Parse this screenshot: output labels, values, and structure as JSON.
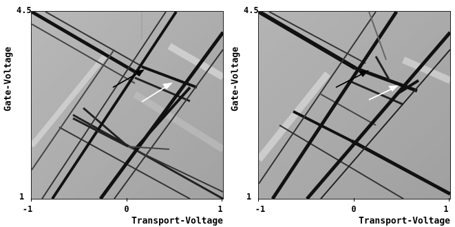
{
  "panels": [
    {
      "y_axis_label": "Gate-Voltage",
      "x_axis_label": "Transport-Voltage",
      "y_ticks": [
        "4.5",
        "1"
      ],
      "x_ticks": [
        "-1",
        "0",
        "1"
      ]
    },
    {
      "y_axis_label": "Gate-Voltage",
      "x_axis_label": "Transport-Voltage",
      "y_ticks": [
        "4.5",
        "1"
      ],
      "x_ticks": [
        "-1",
        "0",
        "1"
      ]
    }
  ],
  "colors": {
    "background_gray": "#a8a8a8",
    "line_dark": "#111111",
    "arrow_black": "#000000",
    "arrow_white": "#ffffff"
  }
}
